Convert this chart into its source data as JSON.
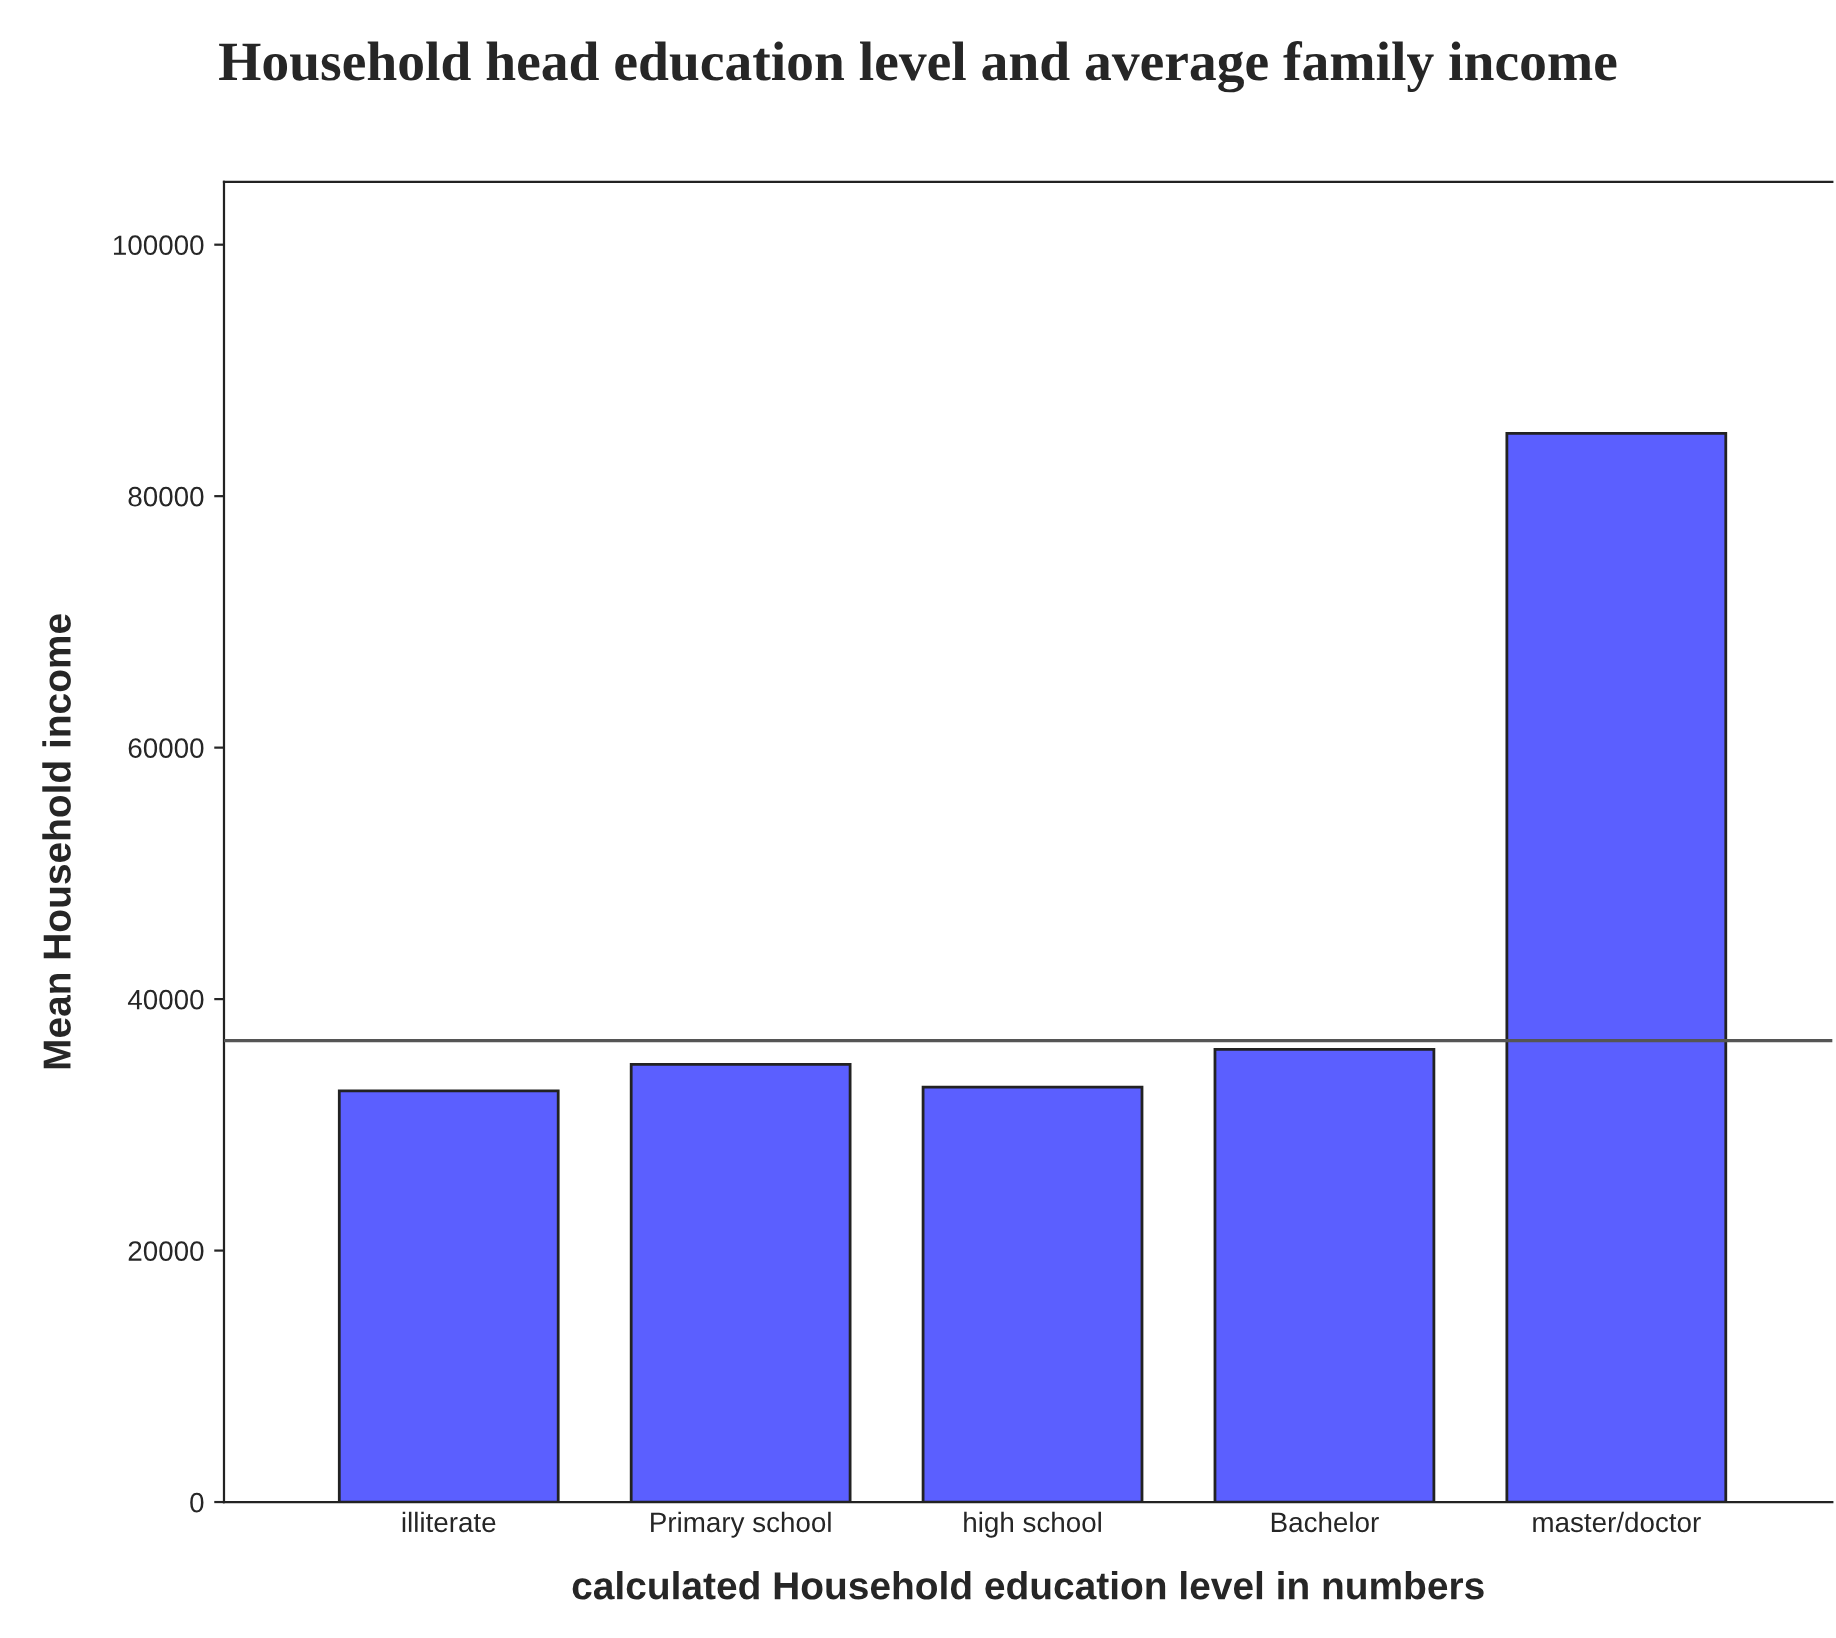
{
  "chart_data": {
    "type": "bar",
    "title": "Household head education level and average family income",
    "xlabel": "calculated Household education level in numbers",
    "ylabel": "Mean Household income",
    "categories": [
      "illiterate",
      "Primary school",
      "high school",
      "Bachelor",
      "master/doctor"
    ],
    "values": [
      32700,
      34800,
      33000,
      36000,
      85000
    ],
    "color": "#5b5fff",
    "ylim": [
      0,
      105000
    ],
    "yticks": [
      0,
      20000,
      40000,
      60000,
      80000,
      100000
    ],
    "ref_lines": [
      {
        "axis": "y",
        "value": 36700,
        "color": "#555555"
      }
    ],
    "grid": false,
    "legend": false
  }
}
